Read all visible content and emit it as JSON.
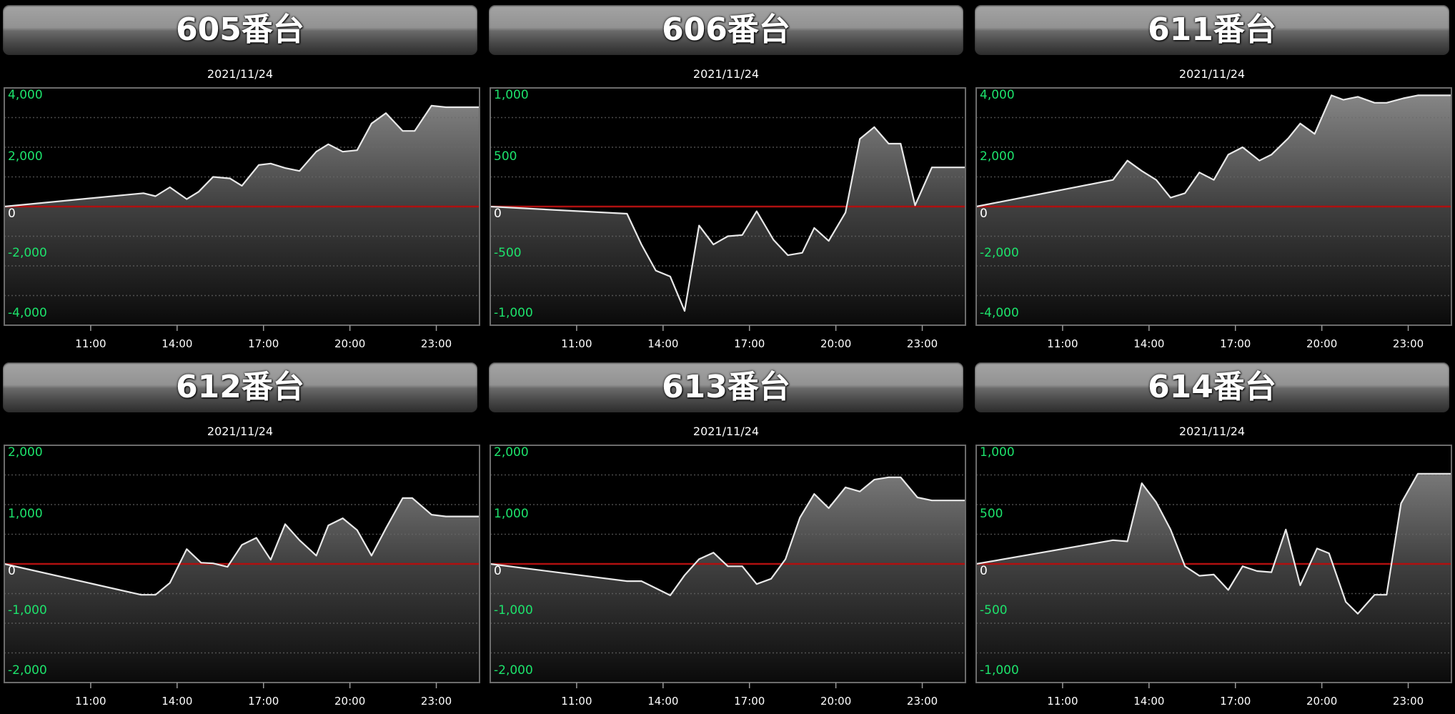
{
  "colors": {
    "line": "#e8e8e8",
    "zero_line": "#b01010",
    "y_label": "#1de36c",
    "zero_label": "#ffffff",
    "grid": "#555555",
    "background": "#000000"
  },
  "chart_data": [
    {
      "type": "area",
      "title": "605番台",
      "subtitle": "2021/11/24",
      "xlim": [
        "08:00",
        "24:30"
      ],
      "xticks": [
        "11:00",
        "14:00",
        "17:00",
        "20:00",
        "23:00"
      ],
      "ylim": [
        -4000,
        4000
      ],
      "ytick_labels": [
        "4,000",
        "2,000",
        "0",
        "-2,000",
        "-4,000"
      ],
      "grid": true,
      "points": [
        [
          "08:00",
          0
        ],
        [
          "12:50",
          450
        ],
        [
          "13:15",
          350
        ],
        [
          "13:45",
          650
        ],
        [
          "14:20",
          250
        ],
        [
          "14:45",
          500
        ],
        [
          "15:15",
          1000
        ],
        [
          "15:50",
          950
        ],
        [
          "16:15",
          700
        ],
        [
          "16:50",
          1400
        ],
        [
          "17:15",
          1450
        ],
        [
          "17:45",
          1300
        ],
        [
          "18:15",
          1200
        ],
        [
          "18:50",
          1850
        ],
        [
          "19:15",
          2100
        ],
        [
          "19:45",
          1850
        ],
        [
          "20:15",
          1900
        ],
        [
          "20:45",
          2800
        ],
        [
          "21:15",
          3150
        ],
        [
          "21:50",
          2550
        ],
        [
          "22:15",
          2550
        ],
        [
          "22:50",
          3400
        ],
        [
          "23:20",
          3350
        ]
      ]
    },
    {
      "type": "area",
      "title": "606番台",
      "subtitle": "2021/11/24",
      "xlim": [
        "08:00",
        "24:30"
      ],
      "xticks": [
        "11:00",
        "14:00",
        "17:00",
        "20:00",
        "23:00"
      ],
      "ylim": [
        -1000,
        1000
      ],
      "ytick_labels": [
        "1,000",
        "500",
        "0",
        "-500",
        "-1,000"
      ],
      "grid": true,
      "points": [
        [
          "08:00",
          0
        ],
        [
          "12:45",
          -60
        ],
        [
          "13:15",
          -320
        ],
        [
          "13:45",
          -540
        ],
        [
          "14:15",
          -590
        ],
        [
          "14:45",
          -880
        ],
        [
          "15:15",
          -160
        ],
        [
          "15:45",
          -320
        ],
        [
          "16:15",
          -250
        ],
        [
          "16:45",
          -240
        ],
        [
          "17:15",
          -40
        ],
        [
          "17:50",
          -280
        ],
        [
          "18:20",
          -410
        ],
        [
          "18:50",
          -390
        ],
        [
          "19:15",
          -180
        ],
        [
          "19:45",
          -290
        ],
        [
          "20:20",
          -50
        ],
        [
          "20:50",
          570
        ],
        [
          "21:20",
          670
        ],
        [
          "21:50",
          530
        ],
        [
          "22:15",
          530
        ],
        [
          "22:45",
          10
        ],
        [
          "23:20",
          330
        ]
      ]
    },
    {
      "type": "area",
      "title": "611番台",
      "subtitle": "2021/11/24",
      "xlim": [
        "08:00",
        "24:30"
      ],
      "xticks": [
        "11:00",
        "14:00",
        "17:00",
        "20:00",
        "23:00"
      ],
      "ylim": [
        -4000,
        4000
      ],
      "ytick_labels": [
        "4,000",
        "2,000",
        "0",
        "-2,000",
        "-4,000"
      ],
      "grid": true,
      "points": [
        [
          "08:00",
          0
        ],
        [
          "12:45",
          900
        ],
        [
          "13:15",
          1550
        ],
        [
          "13:45",
          1200
        ],
        [
          "14:15",
          900
        ],
        [
          "14:45",
          300
        ],
        [
          "15:15",
          450
        ],
        [
          "15:45",
          1150
        ],
        [
          "16:15",
          900
        ],
        [
          "16:45",
          1750
        ],
        [
          "17:15",
          2000
        ],
        [
          "17:50",
          1550
        ],
        [
          "18:15",
          1750
        ],
        [
          "18:50",
          2300
        ],
        [
          "19:15",
          2800
        ],
        [
          "19:45",
          2450
        ],
        [
          "20:20",
          3750
        ],
        [
          "20:45",
          3600
        ],
        [
          "21:15",
          3700
        ],
        [
          "21:50",
          3500
        ],
        [
          "22:15",
          3500
        ],
        [
          "22:50",
          3650
        ],
        [
          "23:20",
          3750
        ]
      ]
    },
    {
      "type": "area",
      "title": "612番台",
      "subtitle": "2021/11/24",
      "xlim": [
        "08:00",
        "24:30"
      ],
      "xticks": [
        "11:00",
        "14:00",
        "17:00",
        "20:00",
        "23:00"
      ],
      "ylim": [
        -2000,
        2000
      ],
      "ytick_labels": [
        "2,000",
        "1,000",
        "0",
        "-1,000",
        "-2,000"
      ],
      "grid": true,
      "points": [
        [
          "08:00",
          0
        ],
        [
          "12:45",
          -520
        ],
        [
          "13:15",
          -520
        ],
        [
          "13:45",
          -320
        ],
        [
          "14:20",
          250
        ],
        [
          "14:50",
          20
        ],
        [
          "15:15",
          10
        ],
        [
          "15:45",
          -50
        ],
        [
          "16:15",
          320
        ],
        [
          "16:45",
          440
        ],
        [
          "17:15",
          70
        ],
        [
          "17:45",
          670
        ],
        [
          "18:15",
          400
        ],
        [
          "18:50",
          140
        ],
        [
          "19:15",
          650
        ],
        [
          "19:45",
          770
        ],
        [
          "20:15",
          570
        ],
        [
          "20:45",
          140
        ],
        [
          "21:15",
          600
        ],
        [
          "21:50",
          1110
        ],
        [
          "22:10",
          1110
        ],
        [
          "22:50",
          830
        ],
        [
          "23:20",
          800
        ]
      ]
    },
    {
      "type": "area",
      "title": "613番台",
      "subtitle": "2021/11/24",
      "xlim": [
        "08:00",
        "24:30"
      ],
      "xticks": [
        "11:00",
        "14:00",
        "17:00",
        "20:00",
        "23:00"
      ],
      "ylim": [
        -2000,
        2000
      ],
      "ytick_labels": [
        "2,000",
        "1,000",
        "0",
        "-1,000",
        "-2,000"
      ],
      "grid": true,
      "points": [
        [
          "08:00",
          0
        ],
        [
          "12:45",
          -290
        ],
        [
          "13:15",
          -290
        ],
        [
          "13:45",
          -410
        ],
        [
          "14:15",
          -530
        ],
        [
          "14:45",
          -190
        ],
        [
          "15:15",
          80
        ],
        [
          "15:45",
          190
        ],
        [
          "16:15",
          -40
        ],
        [
          "16:45",
          -40
        ],
        [
          "17:15",
          -340
        ],
        [
          "17:45",
          -250
        ],
        [
          "18:15",
          80
        ],
        [
          "18:45",
          780
        ],
        [
          "19:15",
          1180
        ],
        [
          "19:45",
          940
        ],
        [
          "20:20",
          1290
        ],
        [
          "20:50",
          1220
        ],
        [
          "21:20",
          1420
        ],
        [
          "21:50",
          1460
        ],
        [
          "22:15",
          1460
        ],
        [
          "22:50",
          1120
        ],
        [
          "23:20",
          1070
        ]
      ]
    },
    {
      "type": "area",
      "title": "614番台",
      "subtitle": "2021/11/24",
      "xlim": [
        "08:00",
        "24:30"
      ],
      "xticks": [
        "11:00",
        "14:00",
        "17:00",
        "20:00",
        "23:00"
      ],
      "ylim": [
        -1000,
        1000
      ],
      "ytick_labels": [
        "1,000",
        "500",
        "0",
        "-500",
        "-1,000"
      ],
      "grid": true,
      "points": [
        [
          "08:00",
          0
        ],
        [
          "12:45",
          200
        ],
        [
          "13:15",
          190
        ],
        [
          "13:45",
          680
        ],
        [
          "14:15",
          520
        ],
        [
          "14:45",
          290
        ],
        [
          "15:15",
          -20
        ],
        [
          "15:45",
          -100
        ],
        [
          "16:15",
          -90
        ],
        [
          "16:45",
          -220
        ],
        [
          "17:15",
          -20
        ],
        [
          "17:45",
          -60
        ],
        [
          "18:15",
          -70
        ],
        [
          "18:45",
          290
        ],
        [
          "19:15",
          -180
        ],
        [
          "19:50",
          130
        ],
        [
          "20:15",
          90
        ],
        [
          "20:50",
          -320
        ],
        [
          "21:15",
          -420
        ],
        [
          "21:50",
          -260
        ],
        [
          "22:15",
          -260
        ],
        [
          "22:45",
          510
        ],
        [
          "23:20",
          760
        ]
      ]
    }
  ]
}
